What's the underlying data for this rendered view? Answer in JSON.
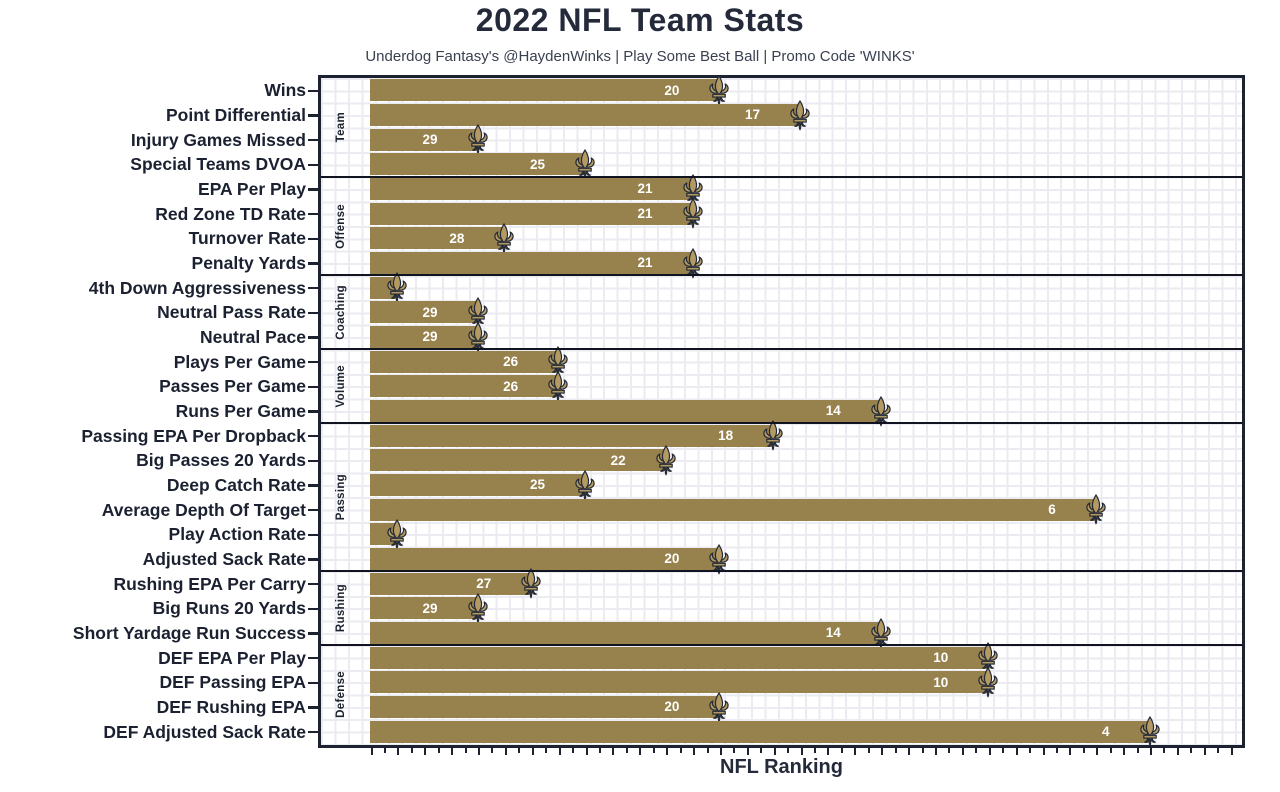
{
  "header": {
    "title": "2022 NFL Team Stats",
    "subtitle": "Underdog Fantasy's @HaydenWinks | Play Some Best Ball | Promo Code 'WINKS'"
  },
  "chart_data": {
    "type": "bar",
    "orientation": "horizontal",
    "title": "2022 NFL Team Stats",
    "xlabel": "NFL Ranking",
    "value_encoding": "bar length = 33 - rank (longer bar = better NFL ranking, rank 1 best of 32 teams)",
    "x_axis": {
      "min": 0,
      "max": 32.4,
      "tick_labels_shown": false,
      "grid": true
    },
    "marker_icon": "fleur-de-lis-icon",
    "bar_color": "#97814C",
    "groups": [
      {
        "name": "Team",
        "stats": [
          {
            "label": "Wins",
            "rank": 20,
            "rank_label": "20"
          },
          {
            "label": "Point Differential",
            "rank": 17,
            "rank_label": "17"
          },
          {
            "label": "Injury Games Missed",
            "rank": 29,
            "rank_label": "29"
          },
          {
            "label": "Special Teams DVOA",
            "rank": 25,
            "rank_label": "25"
          }
        ]
      },
      {
        "name": "Offense",
        "stats": [
          {
            "label": "EPA Per Play",
            "rank": 21,
            "rank_label": "21"
          },
          {
            "label": "Red Zone TD Rate",
            "rank": 21,
            "rank_label": "21"
          },
          {
            "label": "Turnover Rate",
            "rank": 28,
            "rank_label": "28"
          },
          {
            "label": "Penalty Yards",
            "rank": 21,
            "rank_label": "21"
          }
        ]
      },
      {
        "name": "Coaching",
        "stats": [
          {
            "label": "4th Down Aggressiveness",
            "rank": 32,
            "rank_label": ""
          },
          {
            "label": "Neutral Pass Rate",
            "rank": 29,
            "rank_label": "29"
          },
          {
            "label": "Neutral Pace",
            "rank": 29,
            "rank_label": "29"
          }
        ]
      },
      {
        "name": "Volume",
        "stats": [
          {
            "label": "Plays Per Game",
            "rank": 26,
            "rank_label": "26"
          },
          {
            "label": "Passes Per Game",
            "rank": 26,
            "rank_label": "26"
          },
          {
            "label": "Runs Per Game",
            "rank": 14,
            "rank_label": "14"
          }
        ]
      },
      {
        "name": "Passing",
        "stats": [
          {
            "label": "Passing EPA Per Dropback",
            "rank": 18,
            "rank_label": "18"
          },
          {
            "label": "Big Passes 20 Yards",
            "rank": 22,
            "rank_label": "22"
          },
          {
            "label": "Deep Catch Rate",
            "rank": 25,
            "rank_label": "25"
          },
          {
            "label": "Average Depth Of Target",
            "rank": 6,
            "rank_label": "6"
          },
          {
            "label": "Play Action Rate",
            "rank": 32,
            "rank_label": ""
          },
          {
            "label": "Adjusted Sack Rate",
            "rank": 20,
            "rank_label": "20"
          }
        ]
      },
      {
        "name": "Rushing",
        "stats": [
          {
            "label": "Rushing EPA Per Carry",
            "rank": 27,
            "rank_label": "27"
          },
          {
            "label": "Big Runs 20 Yards",
            "rank": 29,
            "rank_label": "29"
          },
          {
            "label": "Short Yardage Run Success",
            "rank": 14,
            "rank_label": "14"
          }
        ]
      },
      {
        "name": "Defense",
        "stats": [
          {
            "label": "DEF EPA Per Play",
            "rank": 10,
            "rank_label": "10"
          },
          {
            "label": "DEF Passing EPA",
            "rank": 10,
            "rank_label": "10"
          },
          {
            "label": "DEF Rushing EPA",
            "rank": 20,
            "rank_label": "20"
          },
          {
            "label": "DEF Adjusted Sack Rate",
            "rank": 4,
            "rank_label": "4"
          }
        ]
      }
    ]
  },
  "colors": {
    "bar_gold": "#97814C",
    "fleur_gold": "#B39A62",
    "dark_navy": "#1D2230",
    "grid_gray": "#EBEBF1",
    "value_text": "#FFFFFF"
  }
}
